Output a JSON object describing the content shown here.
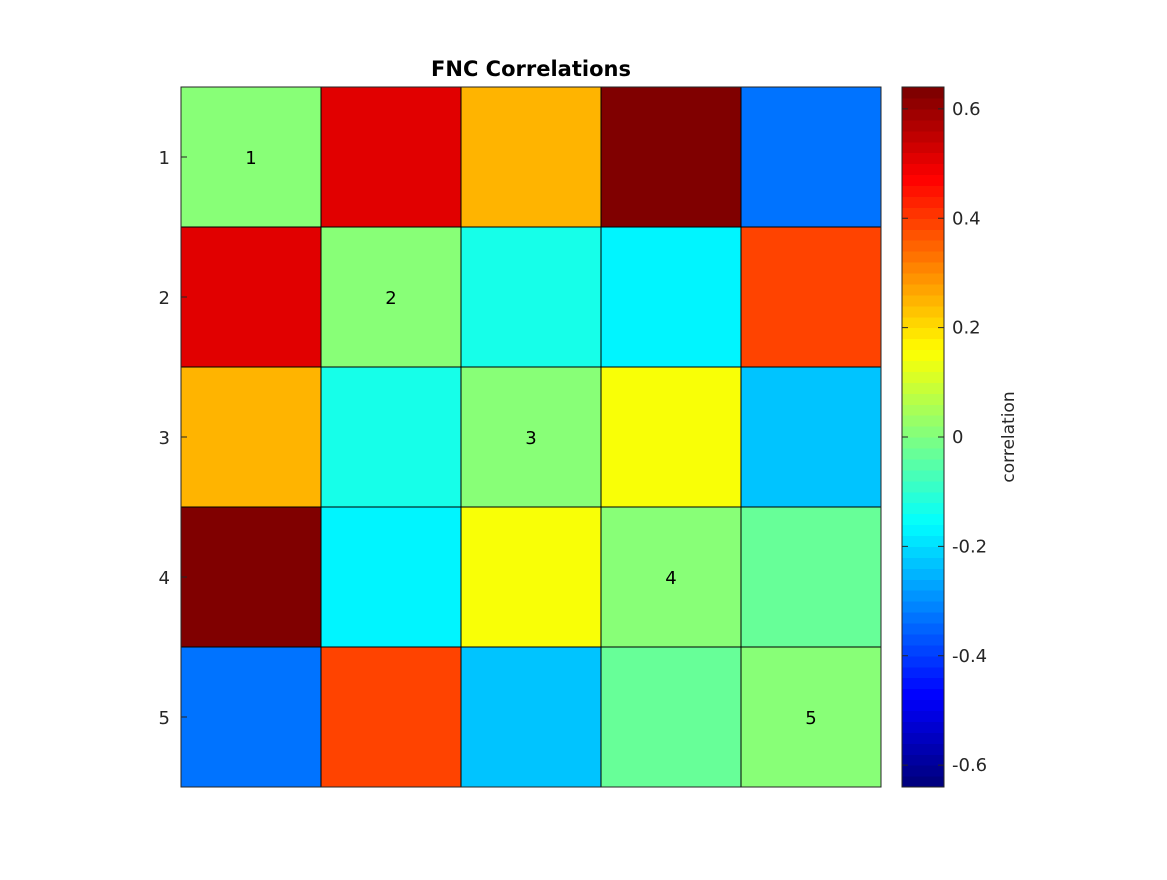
{
  "chart_data": {
    "type": "heatmap",
    "title": "FNC Correlations",
    "row_labels": [
      "1",
      "2",
      "3",
      "4",
      "5"
    ],
    "diagonal_labels": [
      "1",
      "2",
      "3",
      "4",
      "5"
    ],
    "values": [
      [
        0,
        0.5,
        0.25,
        0.64,
        -0.34
      ],
      [
        0.5,
        0,
        -0.14,
        -0.18,
        0.38
      ],
      [
        0.25,
        -0.14,
        0,
        0.14,
        -0.23
      ],
      [
        0.64,
        -0.18,
        0.14,
        0,
        -0.04
      ],
      [
        -0.34,
        0.38,
        -0.23,
        -0.04,
        0
      ]
    ],
    "colormap": "jet",
    "clim": [
      -0.64,
      0.64
    ],
    "colorbar": {
      "label": "correlation",
      "ticks": [
        0.6,
        0.4,
        0.2,
        0,
        -0.2,
        -0.4,
        -0.6
      ],
      "tick_labels": [
        "0.6",
        "0.4",
        "0.2",
        "0",
        "-0.2",
        "-0.4",
        "-0.6"
      ],
      "levels": 64
    }
  }
}
